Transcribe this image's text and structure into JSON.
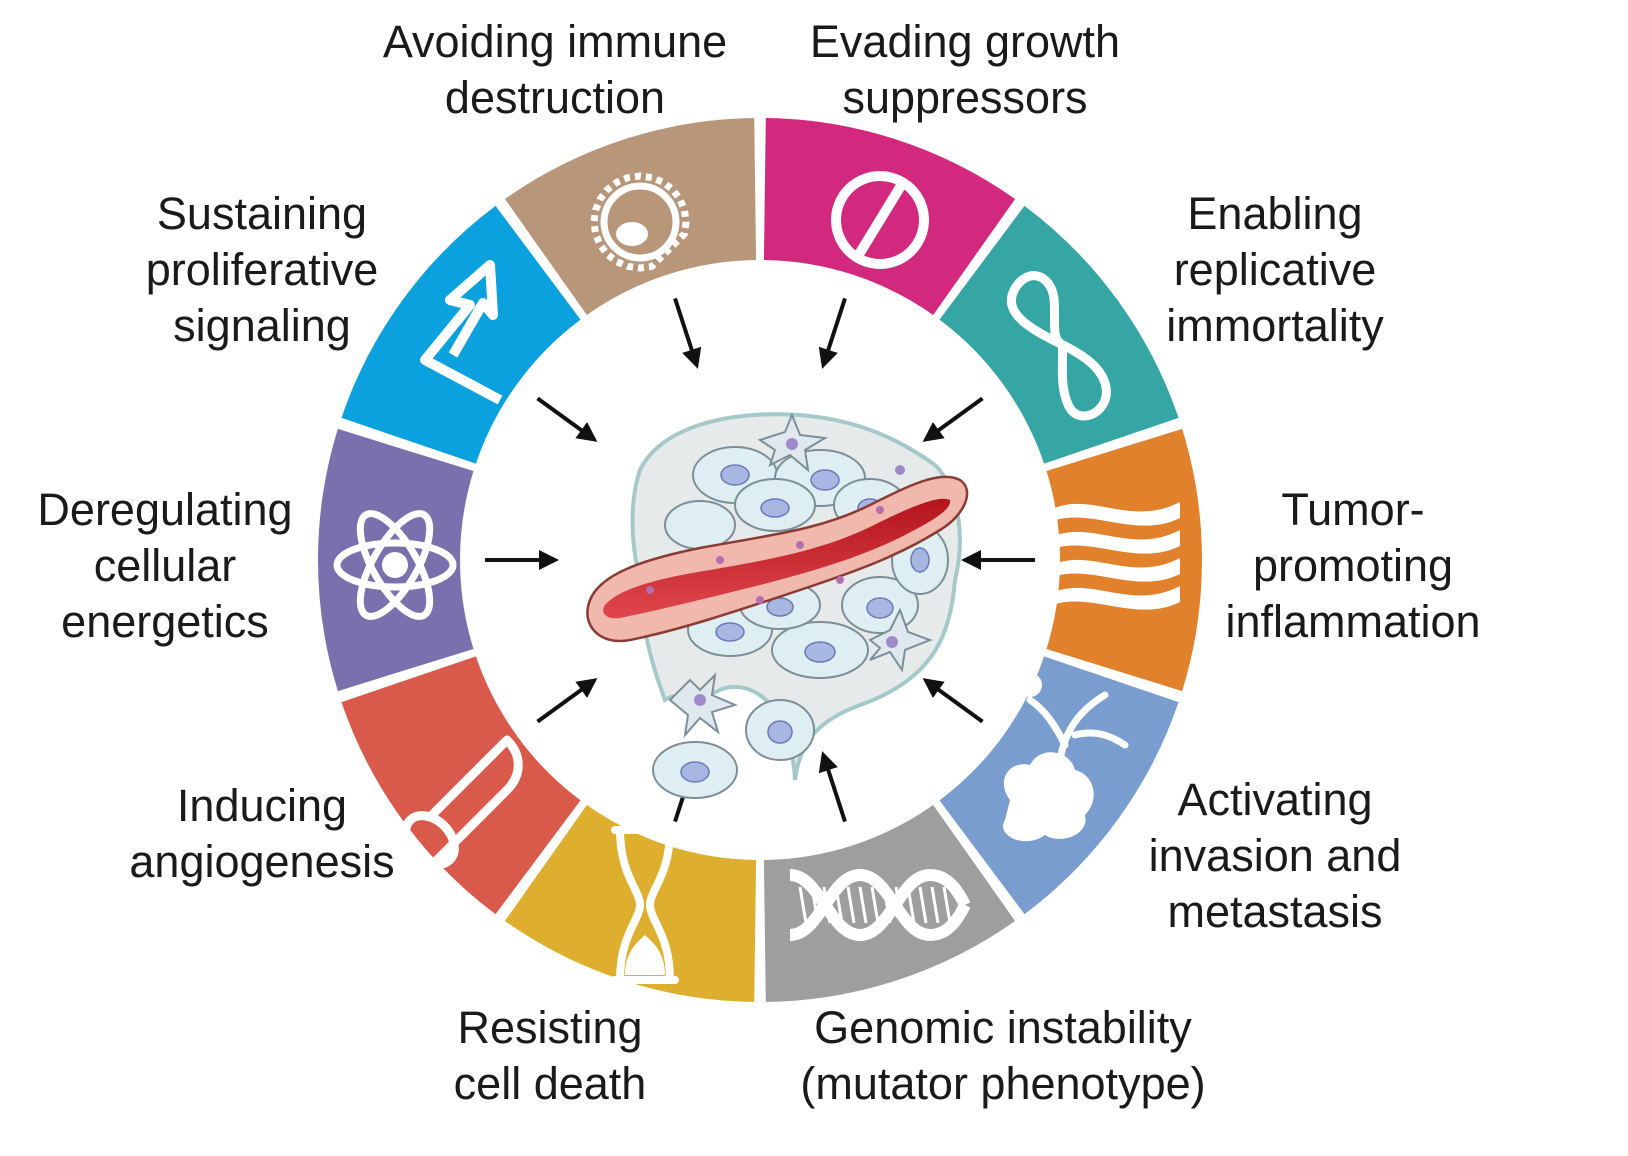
{
  "hallmarks": [
    {
      "id": "avoiding-immune-destruction",
      "lines": [
        "Avoiding immune",
        "destruction"
      ],
      "color": "#B8967A",
      "icon": "immune-cell-icon"
    },
    {
      "id": "evading-growth-suppressors",
      "lines": [
        "Evading growth",
        "suppressors"
      ],
      "color": "#D2287E",
      "icon": "prohibited-sign-icon"
    },
    {
      "id": "enabling-replicative-immortality",
      "lines": [
        "Enabling",
        "replicative",
        "immortality"
      ],
      "color": "#35A6A4",
      "icon": "infinity-icon"
    },
    {
      "id": "tumor-promoting-inflammation",
      "lines": [
        "Tumor-",
        "promoting",
        "inflammation"
      ],
      "color": "#E2812C",
      "icon": "flame-waves-icon"
    },
    {
      "id": "activating-invasion-and-metastasis",
      "lines": [
        "Activating",
        "invasion and",
        "metastasis"
      ],
      "color": "#7A9DD0",
      "icon": "invading-cell-icon"
    },
    {
      "id": "genomic-instability",
      "lines": [
        "Genomic instability",
        "(mutator phenotype)"
      ],
      "color": "#9E9E9E",
      "icon": "dna-helix-icon"
    },
    {
      "id": "resisting-cell-death",
      "lines": [
        "Resisting",
        "cell death"
      ],
      "color": "#DEAE2E",
      "icon": "hourglass-icon"
    },
    {
      "id": "inducing-angiogenesis",
      "lines": [
        "Inducing",
        "angiogenesis"
      ],
      "color": "#D95A4B",
      "icon": "blood-vessel-icon"
    },
    {
      "id": "deregulating-cellular-energetics",
      "lines": [
        "Deregulating",
        "cellular",
        "energetics"
      ],
      "color": "#7A70AE",
      "icon": "atom-icon"
    },
    {
      "id": "sustaining-proliferative-signaling",
      "lines": [
        "Sustaining",
        "proliferative",
        "signaling"
      ],
      "color": "#0AA1DE",
      "icon": "signal-arrow-icon"
    }
  ],
  "center": {
    "icon": "tumor-microenvironment-illustration"
  }
}
